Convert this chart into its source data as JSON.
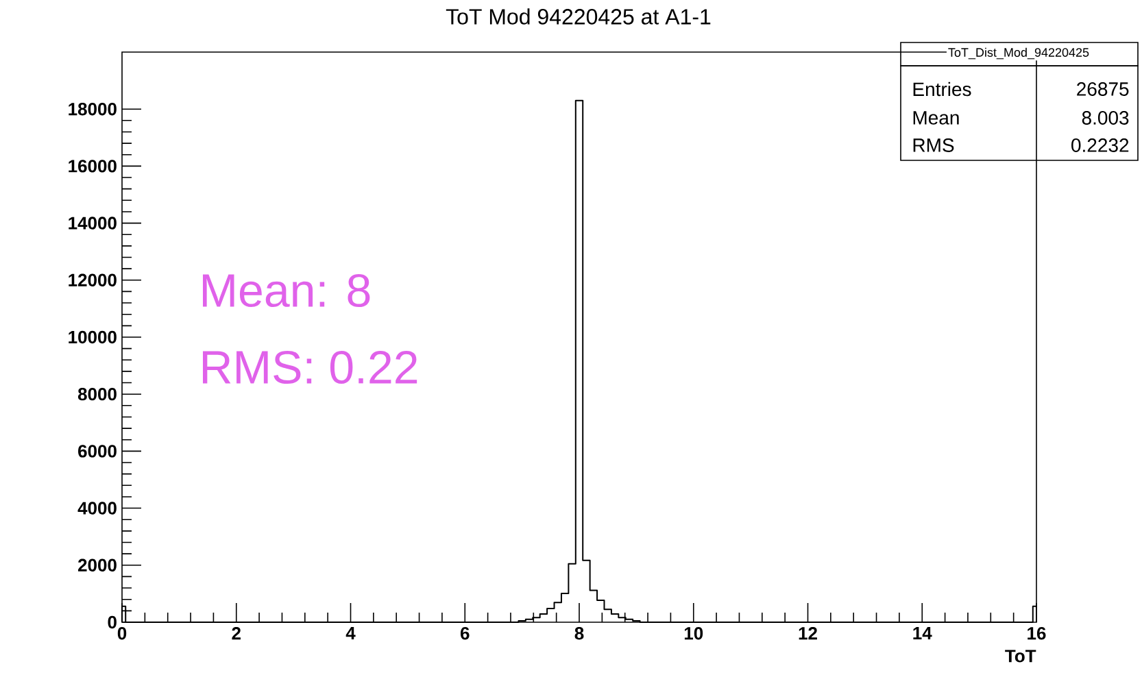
{
  "chart_data": {
    "type": "histogram",
    "title": "ToT Mod 94220425 at A1-1",
    "xlabel": "ToT",
    "bins": [
      0,
      0.0625,
      6.9375,
      7.0625,
      7.1875,
      7.3125,
      7.4375,
      7.5625,
      7.6875,
      7.8125,
      7.9375,
      8.0625,
      8.1875,
      8.3125,
      8.4375,
      8.5625,
      8.6875,
      8.8125,
      8.9375,
      9.0625,
      15.9375,
      16
    ],
    "values": [
      560,
      0,
      50,
      100,
      160,
      290,
      480,
      690,
      1010,
      2050,
      18300,
      2170,
      1120,
      770,
      450,
      290,
      160,
      100,
      50,
      0,
      560
    ],
    "color": "#000000",
    "xlim": [
      0,
      16
    ],
    "ylim": [
      0,
      20000
    ],
    "xticks": [
      0,
      2,
      4,
      6,
      8,
      10,
      12,
      14,
      16
    ],
    "yticks": [
      0,
      2000,
      4000,
      6000,
      8000,
      10000,
      12000,
      14000,
      16000,
      18000
    ],
    "annotations": [
      "ToT_Dist_Mod_94220425",
      "Entries",
      "26875",
      "Mean",
      "8.003",
      "RMS",
      "0.2232",
      "Mean: 8",
      "RMS: 0.22"
    ]
  }
}
